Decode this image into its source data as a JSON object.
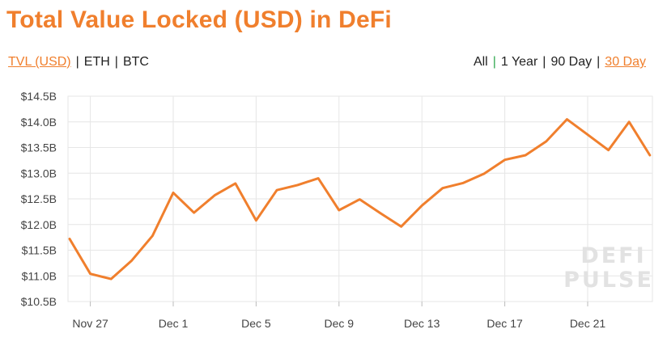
{
  "title": "Total Value Locked (USD) in DeFi",
  "metric_tabs": [
    {
      "label": "TVL (USD)",
      "active": true
    },
    {
      "label": "ETH",
      "active": false
    },
    {
      "label": "BTC",
      "active": false
    }
  ],
  "range_tabs": [
    {
      "label": "All",
      "active": false
    },
    {
      "label": "1 Year",
      "active": false
    },
    {
      "label": "90 Day",
      "active": false
    },
    {
      "label": "30 Day",
      "active": true
    }
  ],
  "separator": "|",
  "watermark": [
    "DEFI",
    "PULSE"
  ],
  "colors": {
    "accent": "#f07f2d",
    "line": "#f07f2d",
    "grid": "#e6e6e6",
    "separator_green": "#2fa84f"
  },
  "chart_data": {
    "type": "line",
    "title": "Total Value Locked (USD) in DeFi",
    "xlabel": "",
    "ylabel": "",
    "x_tick_labels": [
      "Nov 27",
      "Dec 1",
      "Dec 5",
      "Dec 9",
      "Dec 13",
      "Dec 17",
      "Dec 21"
    ],
    "y_tick_labels": [
      "$14.5B",
      "$14.0B",
      "$13.5B",
      "$13.0B",
      "$12.5B",
      "$12.0B",
      "$11.5B",
      "$11.0B",
      "$10.5B"
    ],
    "ylim": [
      10.5,
      14.5
    ],
    "grid": true,
    "series": [
      {
        "x": [
          "Nov 26",
          "Nov 27",
          "Nov 28",
          "Nov 29",
          "Nov 30",
          "Dec 1",
          "Dec 2",
          "Dec 3",
          "Dec 4",
          "Dec 5",
          "Dec 6",
          "Dec 7",
          "Dec 8",
          "Dec 9",
          "Dec 10",
          "Dec 11",
          "Dec 12",
          "Dec 13",
          "Dec 14",
          "Dec 15",
          "Dec 16",
          "Dec 17",
          "Dec 18",
          "Dec 19",
          "Dec 20",
          "Dec 21",
          "Dec 22",
          "Dec 23",
          "Dec 24"
        ],
        "values": [
          11.72,
          11.04,
          10.94,
          11.3,
          11.78,
          12.62,
          12.23,
          12.57,
          12.8,
          12.08,
          12.67,
          12.77,
          12.9,
          12.28,
          12.49,
          12.22,
          11.96,
          12.37,
          12.71,
          12.81,
          12.99,
          13.26,
          13.35,
          13.62,
          14.05,
          13.75,
          13.45,
          14.0,
          13.35
        ]
      }
    ]
  }
}
